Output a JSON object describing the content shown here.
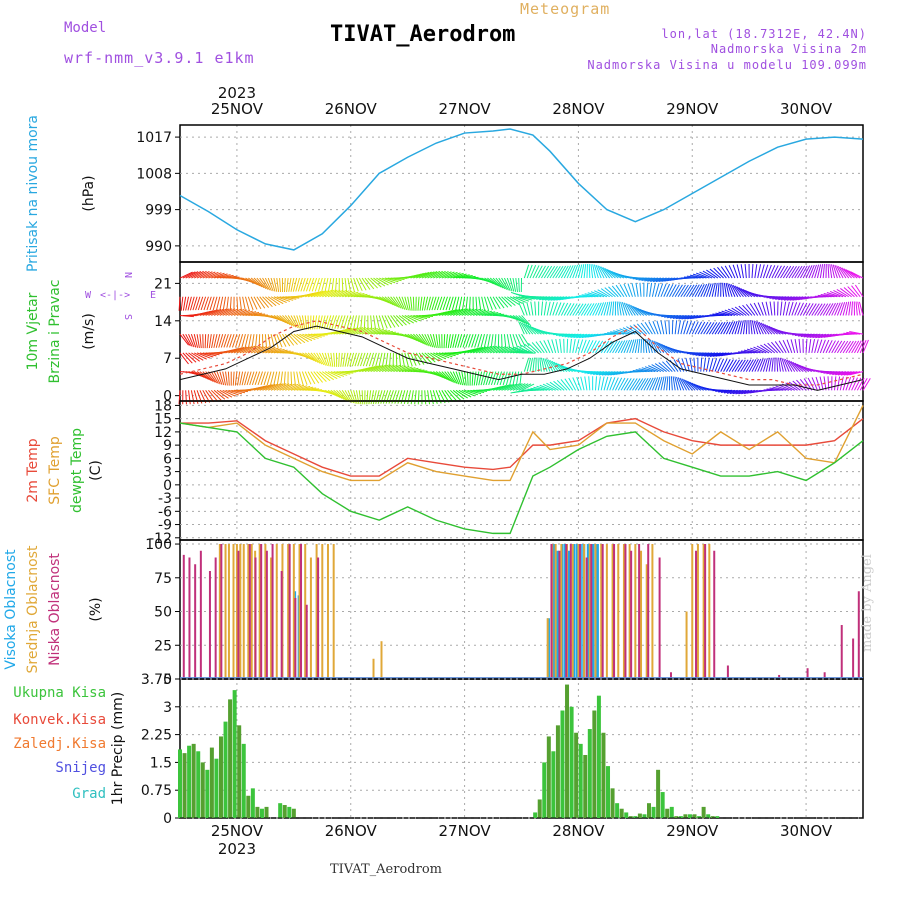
{
  "header": {
    "model_label": "Model",
    "model_name": "wrf-nmm_v3.9.1 e1km",
    "title": "TIVAT_Aerodrom",
    "subtitle": "Meteogram",
    "lonlat": "lon,lat (18.7312E, 42.4N)",
    "altitude": "Nadmorska Visina 2m",
    "model_altitude": "Nadmorska Visina u modelu 109.099m"
  },
  "footer": {
    "station": "TIVAT_Aerodrom",
    "credit": "made by Angel"
  },
  "colors": {
    "pressure": "#29a8e0",
    "temp2m": "#e84a3a",
    "sfc": "#e0a030",
    "dew": "#30c030",
    "high_cloud": "#20a8e8",
    "mid_cloud": "#e0a838",
    "low_cloud": "#c0307a",
    "precip_total": "#3cc43c",
    "precip_conv": "#e84a3a",
    "precip_frozen": "#f07a30",
    "snow": "#5050e0",
    "hail": "#30c0c0",
    "wind_axis": "#a050e0",
    "model": "#a050e0",
    "subtitle": "#e0b060"
  },
  "chart_data": [
    {
      "type": "line",
      "name": "pressure",
      "ylabel": "(hPa)",
      "side_labels": [
        "Pritisak na nivou mora"
      ],
      "yticks": [
        990,
        999,
        1008,
        1017
      ],
      "ylim": [
        986,
        1020
      ],
      "x": [
        24.5,
        24.75,
        25.0,
        25.25,
        25.5,
        25.75,
        26.0,
        26.25,
        26.5,
        26.75,
        27.0,
        27.25,
        27.4,
        27.6,
        27.75,
        28.0,
        28.25,
        28.5,
        28.75,
        29.0,
        29.25,
        29.5,
        29.75,
        30.0,
        30.25,
        30.5
      ],
      "series": [
        {
          "values": [
            1002.5,
            998.5,
            994.0,
            990.5,
            989.0,
            993.0,
            1000.0,
            1008.0,
            1012.0,
            1015.5,
            1018.0,
            1018.5,
            1019.0,
            1017.5,
            1013.5,
            1005.5,
            999.0,
            996.0,
            999.0,
            1003.0,
            1007.0,
            1011.0,
            1014.5,
            1016.5,
            1017.0,
            1016.5
          ]
        }
      ]
    },
    {
      "type": "line",
      "name": "wind",
      "ylabel": "(m/s)",
      "side_labels": [
        "10m Vjetar",
        "Brzina i Pravac"
      ],
      "yticks": [
        0,
        7,
        14,
        21
      ],
      "ylim": [
        -1,
        25
      ],
      "compass": {
        "n": "N",
        "s": "S",
        "e": "E",
        "w": "W"
      },
      "x": [
        24.5,
        24.7,
        24.9,
        25.1,
        25.3,
        25.5,
        25.7,
        25.9,
        26.1,
        26.3,
        26.5,
        26.7,
        26.9,
        27.1,
        27.3,
        27.5,
        27.7,
        27.9,
        28.1,
        28.3,
        28.5,
        28.7,
        28.9,
        29.1,
        29.3,
        29.5,
        29.7,
        29.9,
        30.1,
        30.3,
        30.5
      ],
      "series": [
        {
          "values": [
            4,
            5,
            6,
            8,
            11,
            13,
            14,
            13,
            12,
            10,
            8,
            7,
            6,
            5,
            4,
            4,
            5,
            6,
            8,
            11,
            13,
            9,
            6,
            5,
            4,
            3,
            3,
            2,
            2,
            3,
            4
          ]
        },
        {
          "values": [
            3,
            4,
            5,
            7,
            9,
            12,
            13,
            12,
            11,
            9,
            7,
            6,
            5,
            4,
            3,
            4,
            4,
            5,
            7,
            10,
            12,
            8,
            5,
            4,
            3,
            2,
            2,
            2,
            1,
            2,
            3
          ]
        }
      ]
    },
    {
      "type": "line",
      "name": "temperature",
      "ylabel": "(C)",
      "side_labels": [
        "2m Temp",
        "SFC Temp",
        "dewpt Temp"
      ],
      "yticks": [
        -12,
        -9,
        -6,
        -3,
        0,
        3,
        6,
        9,
        12,
        15,
        18
      ],
      "ylim": [
        -12.5,
        19
      ],
      "x": [
        24.5,
        24.75,
        25.0,
        25.25,
        25.5,
        25.75,
        26.0,
        26.25,
        26.5,
        26.75,
        27.0,
        27.25,
        27.4,
        27.6,
        27.75,
        28.0,
        28.25,
        28.5,
        28.75,
        29.0,
        29.25,
        29.5,
        29.75,
        30.0,
        30.25,
        30.5
      ],
      "series": [
        {
          "name": "2m Temp",
          "values": [
            14,
            14,
            14.5,
            10,
            7,
            4,
            2,
            2,
            6,
            5,
            4,
            3.5,
            4,
            9,
            9,
            10,
            14,
            15,
            12,
            10,
            9,
            9,
            9,
            9,
            10,
            15
          ]
        },
        {
          "name": "SFC Temp",
          "values": [
            14,
            13,
            14,
            9,
            6,
            3,
            1,
            1,
            5,
            3,
            2,
            1,
            1,
            12,
            8,
            9,
            14,
            14,
            10,
            7,
            12,
            8,
            12,
            6,
            5,
            18
          ]
        },
        {
          "name": "dewpt Temp",
          "values": [
            14,
            13,
            12,
            6,
            4,
            -2,
            -6,
            -8,
            -5,
            -8,
            -10,
            -11,
            -11,
            2,
            4,
            8,
            11,
            12,
            6,
            4,
            2,
            2,
            3,
            1,
            5,
            10
          ]
        }
      ]
    },
    {
      "type": "bar",
      "name": "cloud",
      "ylabel": "(%)",
      "side_labels": [
        "Visoka Oblacnost",
        "Srednja Oblacnost",
        "Niska Oblacnost"
      ],
      "yticks": [
        0,
        25,
        50,
        75,
        100
      ],
      "ylim": [
        0,
        103
      ],
      "series": [
        {
          "name": "Visoka Oblacnost",
          "x": [
            25.52,
            25.56,
            27.75,
            27.8,
            27.83,
            27.87,
            27.9,
            27.93,
            27.97,
            28.0,
            28.03,
            28.06,
            28.1,
            28.14,
            28.18
          ],
          "values": [
            65,
            62,
            45,
            100,
            95,
            100,
            100,
            95,
            100,
            100,
            100,
            100,
            100,
            100,
            100
          ]
        },
        {
          "name": "Srednja Oblacnost",
          "x": [
            24.85,
            24.9,
            24.93,
            24.97,
            25.0,
            25.03,
            25.06,
            25.1,
            25.13,
            25.16,
            25.2,
            25.25,
            25.3,
            25.35,
            25.4,
            25.45,
            25.5,
            25.55,
            25.6,
            25.65,
            25.7,
            25.75,
            25.8,
            25.85,
            26.2,
            26.27,
            27.73,
            27.77,
            27.8,
            27.85,
            27.9,
            27.95,
            28.0,
            28.05,
            28.1,
            28.15,
            28.2,
            28.25,
            28.3,
            28.35,
            28.4,
            28.45,
            28.5,
            28.55,
            28.6,
            28.65,
            28.95,
            29.0,
            29.05,
            29.1,
            29.15
          ],
          "values": [
            100,
            100,
            100,
            100,
            100,
            100,
            100,
            100,
            100,
            95,
            100,
            100,
            90,
            100,
            100,
            100,
            100,
            100,
            100,
            90,
            100,
            100,
            100,
            100,
            15,
            28,
            45,
            100,
            100,
            100,
            100,
            100,
            100,
            100,
            100,
            100,
            100,
            100,
            100,
            100,
            100,
            100,
            100,
            95,
            85,
            100,
            50,
            100,
            100,
            100,
            100
          ]
        },
        {
          "name": "Niska Oblacnost",
          "x": [
            24.52,
            24.57,
            24.62,
            24.67,
            24.75,
            24.8,
            24.85,
            25.0,
            25.1,
            25.15,
            25.2,
            25.25,
            25.3,
            25.38,
            25.45,
            25.5,
            25.55,
            25.6,
            25.7,
            27.75,
            27.82,
            27.88,
            27.92,
            28.0,
            28.06,
            28.1,
            28.2,
            28.3,
            28.4,
            28.45,
            28.52,
            28.6,
            28.7,
            28.8,
            29.02,
            29.1,
            29.18,
            29.3,
            29.75,
            30.0,
            30.15,
            30.3,
            30.4,
            30.45
          ],
          "values": [
            92,
            90,
            85,
            95,
            80,
            90,
            100,
            95,
            100,
            90,
            100,
            95,
            100,
            80,
            100,
            60,
            100,
            55,
            90,
            100,
            95,
            100,
            100,
            100,
            90,
            100,
            100,
            100,
            100,
            95,
            100,
            100,
            90,
            5,
            95,
            100,
            95,
            10,
            3,
            8,
            5,
            40,
            30,
            65
          ]
        }
      ]
    },
    {
      "type": "bar",
      "name": "precipitation",
      "ylabel": "1hr Precip (mm)",
      "side_labels": [
        "Ukupna Kisa",
        "Konvek.Kisa",
        "Zaledj.Kisa",
        "Snijeg",
        "Grad"
      ],
      "yticks": [
        0,
        0.75,
        1.5,
        2.25,
        3,
        3.75
      ],
      "ylim": [
        0,
        3.75
      ],
      "x": [
        24.5,
        24.54,
        24.58,
        24.62,
        24.66,
        24.7,
        24.74,
        24.78,
        24.82,
        24.86,
        24.9,
        24.94,
        24.98,
        25.02,
        25.06,
        25.1,
        25.14,
        25.18,
        25.22,
        25.26,
        25.38,
        25.42,
        25.46,
        25.5,
        27.62,
        27.66,
        27.7,
        27.74,
        27.78,
        27.82,
        27.86,
        27.9,
        27.94,
        27.98,
        28.02,
        28.06,
        28.1,
        28.14,
        28.18,
        28.22,
        28.26,
        28.3,
        28.34,
        28.38,
        28.42,
        28.46,
        28.5,
        28.54,
        28.58,
        28.62,
        28.66,
        28.7,
        28.74,
        28.78,
        28.82,
        28.86,
        28.9,
        28.94,
        28.98,
        29.02,
        29.06,
        29.1,
        29.14,
        29.18,
        29.22
      ],
      "series": [
        {
          "name": "Ukupna Kisa",
          "values": [
            1.85,
            1.75,
            1.95,
            2.0,
            1.8,
            1.5,
            1.3,
            1.9,
            1.6,
            2.2,
            2.6,
            3.2,
            3.45,
            2.5,
            2.0,
            0.6,
            0.8,
            0.3,
            0.25,
            0.3,
            0.4,
            0.35,
            0.3,
            0.25,
            0.15,
            0.5,
            1.5,
            2.2,
            1.8,
            2.5,
            2.9,
            3.6,
            3.0,
            2.3,
            2.0,
            1.7,
            2.4,
            2.9,
            3.3,
            2.3,
            1.4,
            0.8,
            0.4,
            0.25,
            0.15,
            0.05,
            0.05,
            0.12,
            0.1,
            0.4,
            0.3,
            1.3,
            0.7,
            0.25,
            0.3,
            0.05,
            0.05,
            0.1,
            0.1,
            0.1,
            0.05,
            0.3,
            0.1,
            0.05,
            0.05
          ]
        }
      ]
    }
  ],
  "x_axis": {
    "day_labels": [
      "25NOV",
      "26NOV",
      "27NOV",
      "28NOV",
      "29NOV",
      "30NOV"
    ],
    "year": "2023"
  }
}
